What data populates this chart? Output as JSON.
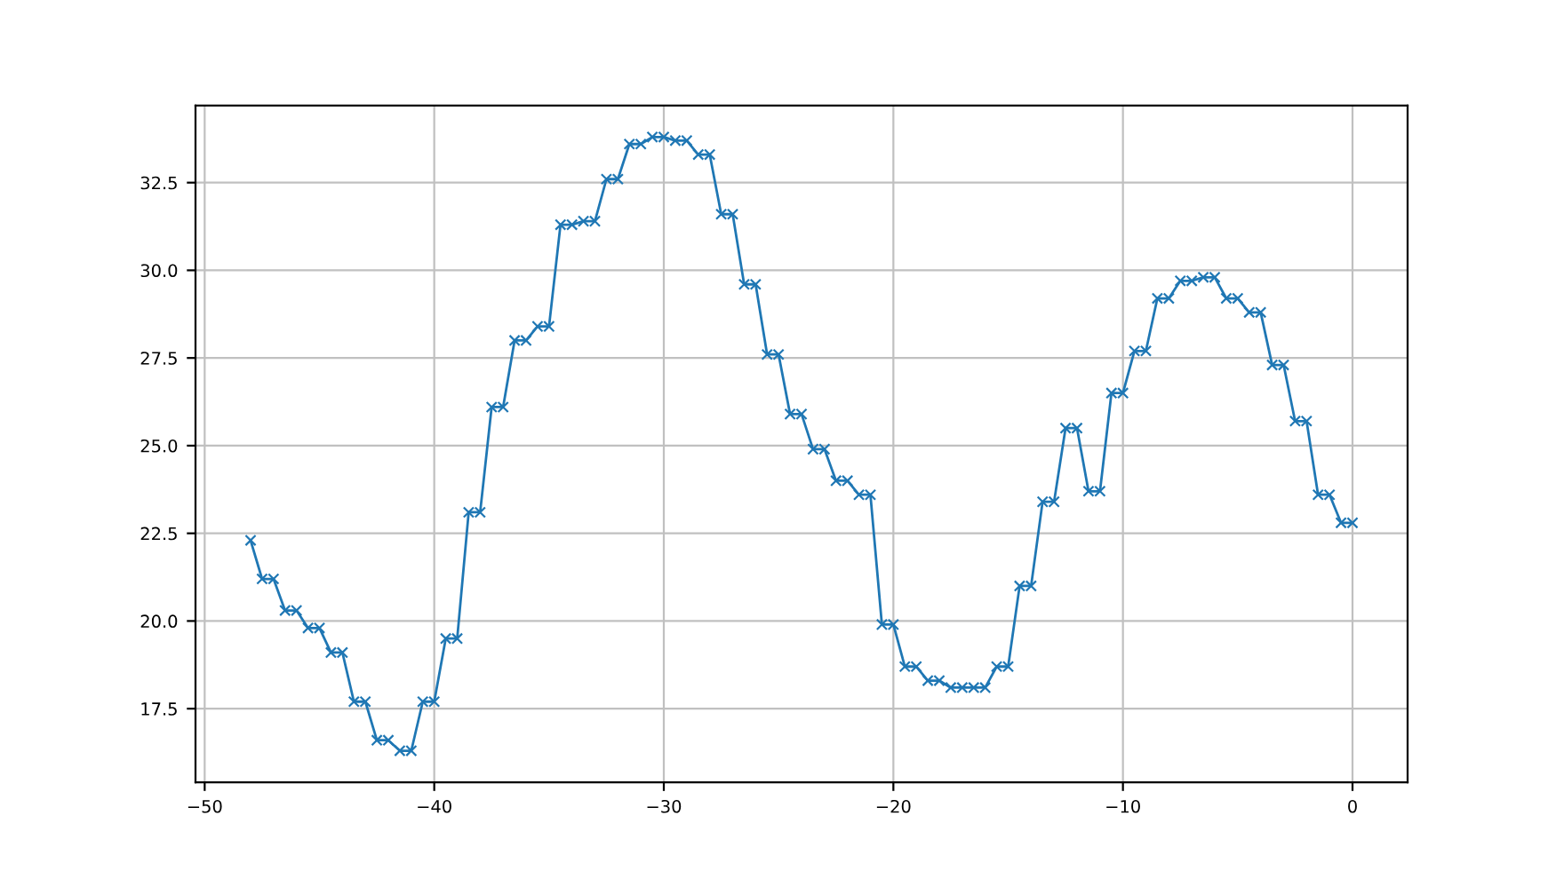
{
  "chart_data": {
    "type": "line",
    "x": [
      -48,
      -47.5,
      -47,
      -46.5,
      -46,
      -45.5,
      -45,
      -44.5,
      -44,
      -43.5,
      -43,
      -42.5,
      -42,
      -41.5,
      -41,
      -40.5,
      -40,
      -39.5,
      -39,
      -38.5,
      -38,
      -37.5,
      -37,
      -36.5,
      -36,
      -35.5,
      -35,
      -34.5,
      -34,
      -33.5,
      -33,
      -32.5,
      -32,
      -31.5,
      -31,
      -30.5,
      -30,
      -29.5,
      -29,
      -28.5,
      -28,
      -27.5,
      -27,
      -26.5,
      -26,
      -25.5,
      -25,
      -24.5,
      -24,
      -23.5,
      -23,
      -22.5,
      -22,
      -21.5,
      -21,
      -20.5,
      -20,
      -19.5,
      -19,
      -18.5,
      -18,
      -17.5,
      -17,
      -16.5,
      -16,
      -15.5,
      -15,
      -14.5,
      -14,
      -13.5,
      -13,
      -12.5,
      -12,
      -11.5,
      -11,
      -10.5,
      -10,
      -9.5,
      -9,
      -8.5,
      -8,
      -7.5,
      -7,
      -6.5,
      -6,
      -5.5,
      -5,
      -4.5,
      -4,
      -3.5,
      -3,
      -2.5,
      -2,
      -1.5,
      -1,
      -0.5,
      0
    ],
    "series": [
      {
        "color": "#1f77b4",
        "values": [
          22.3,
          21.2,
          21.2,
          20.3,
          20.3,
          19.8,
          19.8,
          19.1,
          19.1,
          17.7,
          17.7,
          16.6,
          16.6,
          16.3,
          16.3,
          17.7,
          17.7,
          19.5,
          19.5,
          23.1,
          23.1,
          26.1,
          26.1,
          28.0,
          28.0,
          28.4,
          28.4,
          31.3,
          31.3,
          31.4,
          31.4,
          32.6,
          32.6,
          33.6,
          33.6,
          33.8,
          33.8,
          33.7,
          33.7,
          33.3,
          33.3,
          31.6,
          31.6,
          29.6,
          29.6,
          27.6,
          27.6,
          25.9,
          25.9,
          24.9,
          24.9,
          24.0,
          24.0,
          23.6,
          23.6,
          19.9,
          19.9,
          18.7,
          18.7,
          18.3,
          18.3,
          18.1,
          18.1,
          18.1,
          18.1,
          18.7,
          18.7,
          21.0,
          21.0,
          23.4,
          23.4,
          25.5,
          25.5,
          23.7,
          23.7,
          26.5,
          26.5,
          27.7,
          27.7,
          29.2,
          29.2,
          29.7,
          29.7,
          29.8,
          29.8,
          29.2,
          29.2,
          28.8,
          28.8,
          27.3,
          27.3,
          25.7,
          25.7,
          23.6,
          23.6,
          22.8,
          22.8
        ]
      }
    ],
    "xlim": [
      -50.4,
      2.4
    ],
    "ylim": [
      15.4,
      34.7
    ],
    "xticks": [
      {
        "value": -50,
        "label": "−50"
      },
      {
        "value": -40,
        "label": "−40"
      },
      {
        "value": -30,
        "label": "−30"
      },
      {
        "value": -20,
        "label": "−20"
      },
      {
        "value": -10,
        "label": "−10"
      },
      0
    ],
    "yticks": [
      17.5,
      {
        "value": 20,
        "label": "20.0"
      },
      22.5,
      {
        "value": 25,
        "label": "25.0"
      },
      27.5,
      {
        "value": 30,
        "label": "30.0"
      },
      32.5
    ],
    "grid": true,
    "marker": "cross",
    "line_style": "solid"
  }
}
